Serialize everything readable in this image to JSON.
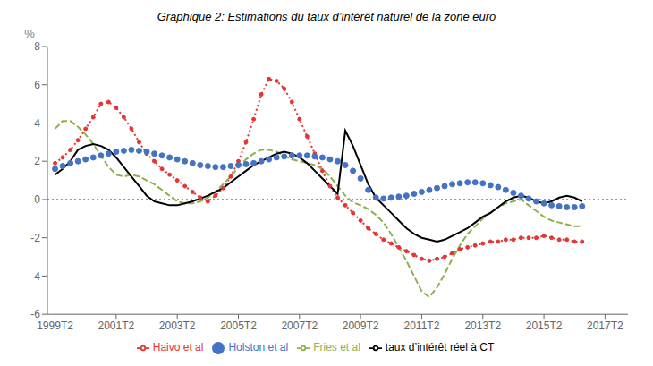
{
  "chart_data": {
    "type": "line",
    "title": "Graphique 2: Estimations du taux d’intérêt naturel de la zone euro",
    "ylabel": "%",
    "x": [
      1999.5,
      1999.75,
      2000,
      2000.25,
      2000.5,
      2000.75,
      2001,
      2001.25,
      2001.5,
      2001.75,
      2002,
      2002.25,
      2002.5,
      2002.75,
      2003,
      2003.25,
      2003.5,
      2003.75,
      2004,
      2004.25,
      2004.5,
      2004.75,
      2005,
      2005.25,
      2005.5,
      2005.75,
      2006,
      2006.25,
      2006.5,
      2006.75,
      2007,
      2007.25,
      2007.5,
      2007.75,
      2008,
      2008.25,
      2008.5,
      2008.75,
      2009,
      2009.25,
      2009.5,
      2009.75,
      2010,
      2010.25,
      2010.5,
      2010.75,
      2011,
      2011.25,
      2011.5,
      2011.75,
      2012,
      2012.25,
      2012.5,
      2012.75,
      2013,
      2013.25,
      2013.5,
      2013.75,
      2014,
      2014.25,
      2014.5,
      2014.75,
      2015,
      2015.25,
      2015.5,
      2015.75,
      2016,
      2016.25,
      2016.5,
      2016.75
    ],
    "xlim": [
      1999.25,
      2018.25
    ],
    "xticks": [
      {
        "value": 1999.5,
        "label": "1999T2"
      },
      {
        "value": 2001.5,
        "label": "2001T2"
      },
      {
        "value": 2003.5,
        "label": "2003T2"
      },
      {
        "value": 2005.5,
        "label": "2005T2"
      },
      {
        "value": 2007.5,
        "label": "2007T2"
      },
      {
        "value": 2009.5,
        "label": "2009T2"
      },
      {
        "value": 2011.5,
        "label": "2011T2"
      },
      {
        "value": 2013.5,
        "label": "2013T2"
      },
      {
        "value": 2015.5,
        "label": "2015T2"
      },
      {
        "value": 2017.5,
        "label": "2017T2"
      }
    ],
    "ylim": [
      -6,
      8
    ],
    "yticks": [
      -6,
      -4,
      -2,
      0,
      2,
      4,
      6,
      8
    ],
    "grid": false,
    "legend": "bottom",
    "reference_lines": [
      {
        "y": 0,
        "color": "#999999",
        "line_style": "dotted"
      }
    ],
    "series": [
      {
        "name": "Haivo et al",
        "color": "#e63333",
        "line_style": "dotted",
        "marker": "circle",
        "values": [
          1.9,
          2.2,
          2.6,
          3.1,
          3.7,
          4.3,
          5.0,
          5.1,
          4.8,
          4.3,
          3.7,
          3.0,
          2.4,
          2.0,
          1.6,
          1.3,
          1.0,
          0.7,
          0.4,
          0.1,
          -0.1,
          0.2,
          0.6,
          1.2,
          2.0,
          3.0,
          4.2,
          5.5,
          6.3,
          6.2,
          5.8,
          5.1,
          4.2,
          3.3,
          2.4,
          1.5,
          0.7,
          0.1,
          -0.3,
          -0.7,
          -1.1,
          -1.5,
          -1.8,
          -2.1,
          -2.3,
          -2.5,
          -2.7,
          -2.9,
          -3.1,
          -3.2,
          -3.1,
          -3.0,
          -2.8,
          -2.6,
          -2.5,
          -2.4,
          -2.3,
          -2.2,
          -2.2,
          -2.1,
          -2.1,
          -2.0,
          -2.0,
          -2.0,
          -1.9,
          -2.0,
          -2.1,
          -2.1,
          -2.2,
          -2.2
        ]
      },
      {
        "name": "Holston et al",
        "color": "#4472c4",
        "line_style": "none",
        "marker": "circle",
        "values": [
          1.6,
          1.75,
          1.9,
          2.0,
          2.1,
          2.2,
          2.3,
          2.4,
          2.5,
          2.55,
          2.6,
          2.55,
          2.5,
          2.4,
          2.3,
          2.2,
          2.1,
          2.0,
          1.9,
          1.8,
          1.75,
          1.7,
          1.7,
          1.75,
          1.8,
          1.85,
          1.9,
          2.0,
          2.1,
          2.2,
          2.25,
          2.3,
          2.3,
          2.3,
          2.25,
          2.2,
          2.1,
          2.0,
          1.8,
          1.5,
          1.1,
          0.5,
          0.1,
          0.05,
          0.1,
          0.15,
          0.2,
          0.3,
          0.4,
          0.5,
          0.6,
          0.7,
          0.8,
          0.85,
          0.9,
          0.9,
          0.85,
          0.75,
          0.65,
          0.5,
          0.35,
          0.2,
          0.05,
          -0.1,
          -0.2,
          -0.3,
          -0.35,
          -0.4,
          -0.4,
          -0.35
        ]
      },
      {
        "name": "Fries et al",
        "color": "#8db050",
        "line_style": "dashed",
        "marker": "none",
        "values": [
          3.7,
          4.1,
          4.1,
          3.8,
          3.4,
          2.9,
          2.3,
          1.7,
          1.3,
          1.2,
          1.3,
          1.2,
          1.0,
          0.8,
          0.5,
          0.2,
          -0.1,
          -0.2,
          -0.2,
          -0.1,
          0.1,
          0.4,
          0.8,
          1.2,
          1.7,
          2.1,
          2.4,
          2.6,
          2.6,
          2.5,
          2.3,
          2.1,
          2.0,
          1.9,
          1.8,
          1.6,
          1.2,
          0.7,
          0.2,
          -0.15,
          -0.3,
          -0.5,
          -0.8,
          -1.2,
          -1.8,
          -2.5,
          -3.2,
          -4.0,
          -4.8,
          -5.1,
          -4.6,
          -3.9,
          -3.1,
          -2.4,
          -1.8,
          -1.4,
          -1.0,
          -0.7,
          -0.4,
          -0.2,
          -0.1,
          0.0,
          -0.3,
          -0.6,
          -0.9,
          -1.1,
          -1.2,
          -1.3,
          -1.4,
          -1.4
        ]
      },
      {
        "name": "taux d’intérêt réel à CT",
        "color": "#000000",
        "line_style": "solid",
        "marker": "none",
        "values": [
          1.3,
          1.6,
          2.0,
          2.6,
          2.8,
          2.9,
          2.8,
          2.6,
          2.2,
          1.7,
          1.2,
          0.7,
          0.2,
          -0.1,
          -0.2,
          -0.3,
          -0.3,
          -0.2,
          -0.1,
          0.05,
          0.2,
          0.4,
          0.6,
          0.9,
          1.2,
          1.5,
          1.8,
          2.0,
          2.2,
          2.4,
          2.5,
          2.4,
          2.2,
          1.9,
          1.5,
          1.1,
          0.7,
          0.3,
          3.6,
          2.8,
          1.8,
          0.8,
          0.1,
          -0.3,
          -0.7,
          -1.1,
          -1.5,
          -1.8,
          -2.0,
          -2.1,
          -2.2,
          -2.1,
          -1.9,
          -1.7,
          -1.5,
          -1.2,
          -0.9,
          -0.7,
          -0.4,
          -0.1,
          0.1,
          0.2,
          0.1,
          -0.1,
          -0.2,
          -0.1,
          0.1,
          0.2,
          0.1,
          -0.1
        ]
      }
    ]
  }
}
